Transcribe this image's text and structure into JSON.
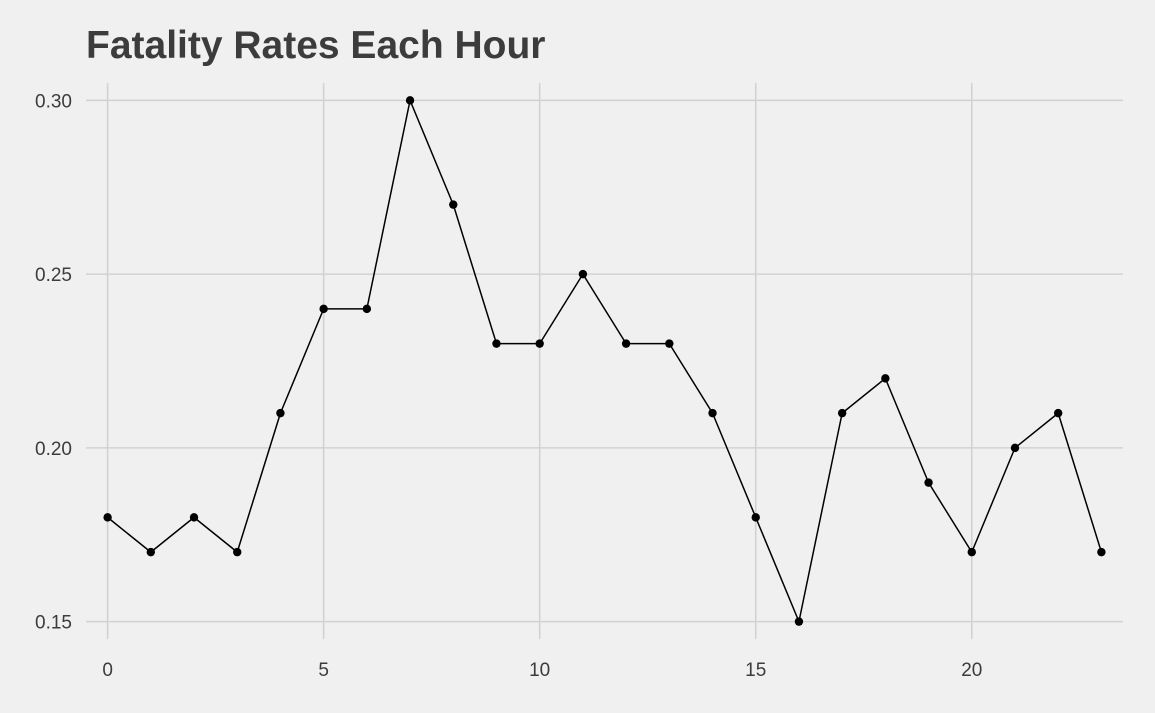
{
  "chart_data": {
    "type": "line",
    "title": "Fatality Rates Each Hour",
    "xlabel": "",
    "ylabel": "",
    "xlim": [
      -0.5,
      23.5
    ],
    "ylim": [
      0.145,
      0.305
    ],
    "xticks": [
      0,
      5,
      10,
      15,
      20
    ],
    "yticks": [
      0.15,
      0.2,
      0.25,
      0.3
    ],
    "xtick_labels": [
      "0",
      "5",
      "10",
      "15",
      "20"
    ],
    "ytick_labels": [
      "0.15",
      "0.20",
      "0.25",
      "0.30"
    ],
    "grid": true,
    "show_points": true,
    "series": [
      {
        "x": [
          0,
          1,
          2,
          3,
          4,
          5,
          6,
          7,
          8,
          9,
          10,
          11,
          12,
          13,
          14,
          15,
          16,
          17,
          18,
          19,
          20,
          21,
          22,
          23
        ],
        "values": [
          0.18,
          0.17,
          0.18,
          0.17,
          0.21,
          0.24,
          0.24,
          0.3,
          0.27,
          0.23,
          0.23,
          0.25,
          0.23,
          0.23,
          0.21,
          0.18,
          0.15,
          0.21,
          0.22,
          0.19,
          0.17,
          0.2,
          0.21,
          0.17
        ]
      }
    ],
    "colors": {
      "background": "#f0f0f0",
      "grid": "#d2d2d2",
      "line": "#000000",
      "text": "#3c3c3c"
    }
  }
}
